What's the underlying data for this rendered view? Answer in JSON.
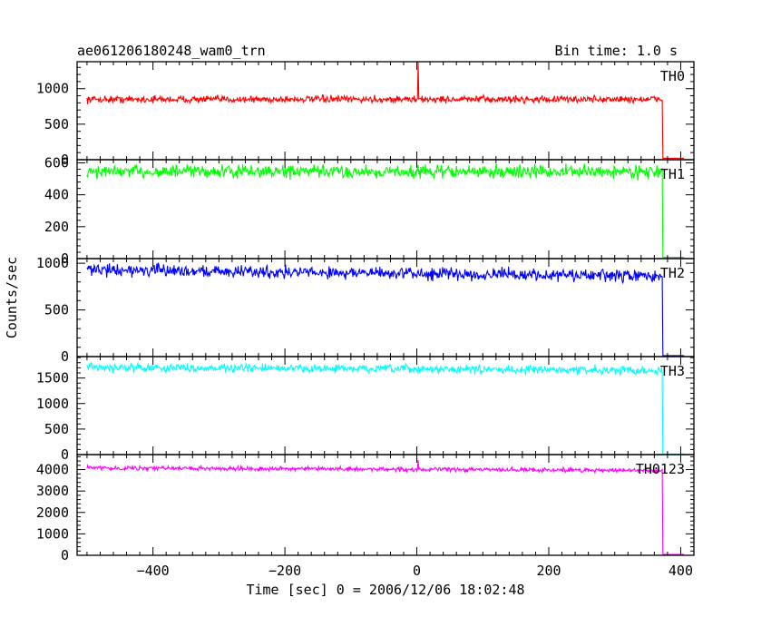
{
  "title": "ae061206180248_wam0_trn",
  "bin_time": "Bin time: 1.0 s",
  "xlabel": "Time [sec] 0 = 2006/12/06 18:02:48",
  "ylabel": "Counts/sec",
  "chart_data": {
    "type": "line",
    "xlim": [
      -515,
      420
    ],
    "x_ticks": [
      -400,
      -200,
      0,
      200,
      400
    ],
    "x_tick_labels": [
      "−400",
      "−200",
      "0",
      "200",
      "400"
    ],
    "panels": [
      {
        "name": "TH0",
        "color": "#ff0000",
        "ylim": [
          0,
          1380
        ],
        "y_ticks": [
          0,
          500,
          1000
        ],
        "y_tick_labels": [
          "0",
          "500",
          "1000"
        ],
        "x_start": -500,
        "x_end": 405,
        "cutoff": 372,
        "mean": 850,
        "noise": 35,
        "trend": 0,
        "spike": {
          "x": 2,
          "value": 1400
        },
        "post_cutoff_value": 20
      },
      {
        "name": "TH1",
        "color": "#00ff00",
        "ylim": [
          0,
          620
        ],
        "y_ticks": [
          0,
          200,
          400,
          600
        ],
        "y_tick_labels": [
          "0",
          "200",
          "400",
          "600"
        ],
        "x_start": -500,
        "x_end": 405,
        "cutoff": 372,
        "mean": 545,
        "noise": 28,
        "trend": 0,
        "post_cutoff_value": 8
      },
      {
        "name": "TH2",
        "color": "#0000ff",
        "ylim": [
          0,
          1050
        ],
        "y_ticks": [
          0,
          500,
          1000
        ],
        "y_tick_labels": [
          "0",
          "500",
          "1000"
        ],
        "x_start": -500,
        "x_end": 405,
        "cutoff": 372,
        "mean": 930,
        "noise": 45,
        "trend": -70,
        "post_cutoff_value": 10
      },
      {
        "name": "TH3",
        "color": "#00ffff",
        "ylim": [
          0,
          1920
        ],
        "y_ticks": [
          0,
          500,
          1000,
          1500
        ],
        "y_tick_labels": [
          "0",
          "500",
          "1000",
          "1500"
        ],
        "x_start": -500,
        "x_end": 405,
        "cutoff": 372,
        "mean": 1710,
        "noise": 55,
        "trend": -60,
        "post_cutoff_value": 10
      },
      {
        "name": "TH0123",
        "color": "#ff00ff",
        "ylim": [
          0,
          4700
        ],
        "y_ticks": [
          0,
          1000,
          2000,
          3000,
          4000
        ],
        "y_tick_labels": [
          "0",
          "1000",
          "2000",
          "3000",
          "4000"
        ],
        "x_start": -500,
        "x_end": 405,
        "cutoff": 372,
        "mean": 4080,
        "noise": 70,
        "trend": -120,
        "spike": {
          "x": 2,
          "value": 4450
        },
        "post_cutoff_value": 40
      }
    ]
  }
}
